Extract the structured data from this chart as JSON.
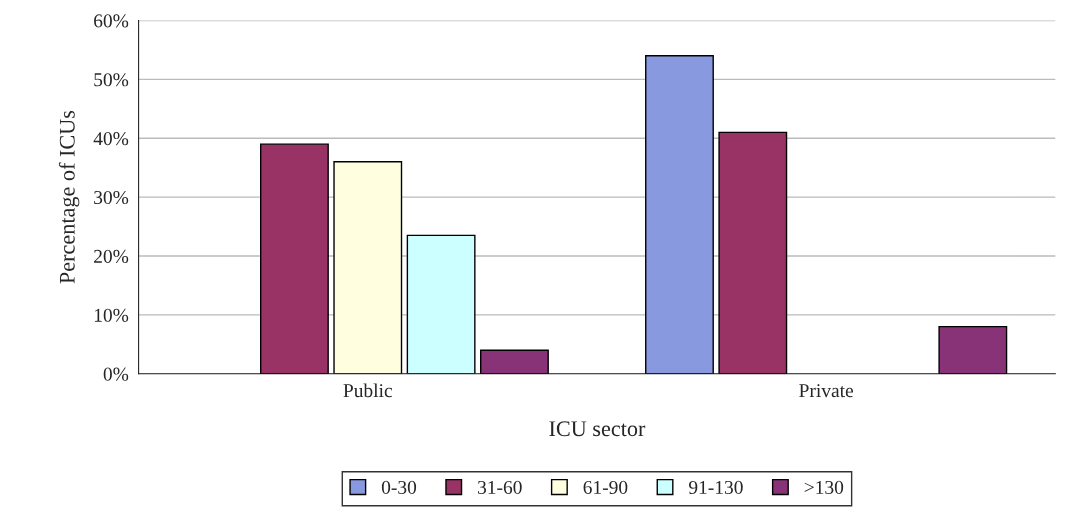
{
  "chart_data": {
    "type": "bar",
    "xlabel": "ICU sector",
    "ylabel": "Percentage of ICUs",
    "categories": [
      "Public",
      "Private"
    ],
    "series": [
      {
        "name": "0-30",
        "color": "#8899e0",
        "values": [
          null,
          54
        ]
      },
      {
        "name": "31-60",
        "color": "#993366",
        "values": [
          39,
          41
        ]
      },
      {
        "name": "61-90",
        "color": "#ffffe0",
        "values": [
          36,
          null
        ]
      },
      {
        "name": "91-130",
        "color": "#ccffff",
        "values": [
          23.5,
          null
        ]
      },
      {
        "name": ">130",
        "color": "#883377",
        "values": [
          4,
          8
        ]
      }
    ],
    "ylim": [
      0,
      60
    ],
    "yticks": [
      {
        "value": 0,
        "label": "0%"
      },
      {
        "value": 10,
        "label": "10%"
      },
      {
        "value": 20,
        "label": "20%"
      },
      {
        "value": 30,
        "label": "30%"
      },
      {
        "value": 40,
        "label": "40%"
      },
      {
        "value": 50,
        "label": "50%"
      },
      {
        "value": 60,
        "label": "60%"
      }
    ],
    "grid": "y",
    "legend": "bottom"
  }
}
